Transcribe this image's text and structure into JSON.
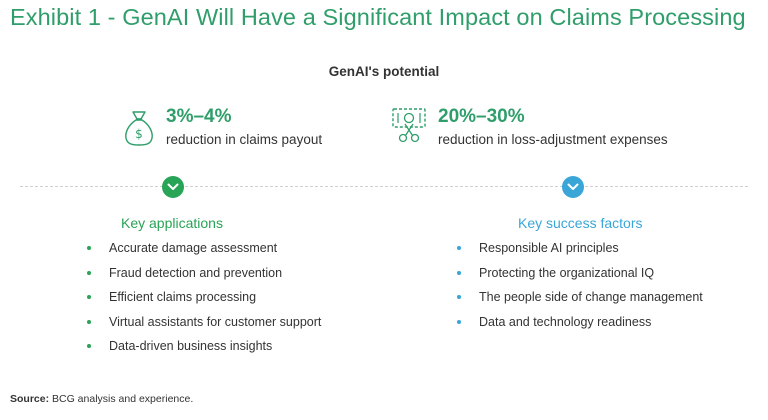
{
  "title": "Exhibit 1 - GenAI Will Have a Significant Impact on Claims Processing",
  "subtitle": "GenAI's potential",
  "stats": [
    {
      "icon": "money-bag-icon",
      "value": "3%–4%",
      "description": "reduction in claims payout"
    },
    {
      "icon": "cut-banknote-icon",
      "value": "20%–30%",
      "description": "reduction in loss-adjustment expenses"
    }
  ],
  "left_column": {
    "heading": "Key applications",
    "items": [
      "Accurate damage assessment",
      "Fraud detection and prevention",
      "Efficient claims processing",
      "Virtual assistants for customer support",
      "Data-driven business insights"
    ]
  },
  "right_column": {
    "heading": "Key success factors",
    "items": [
      "Responsible AI principles",
      "Protecting the organizational IQ",
      "The people side of change management",
      "Data and technology readiness"
    ]
  },
  "source": {
    "label": "Source:",
    "text": " BCG analysis and experience."
  },
  "colors": {
    "green": "#2f9e6a",
    "left_accent": "#27a456",
    "right_accent": "#3aa6d8"
  }
}
